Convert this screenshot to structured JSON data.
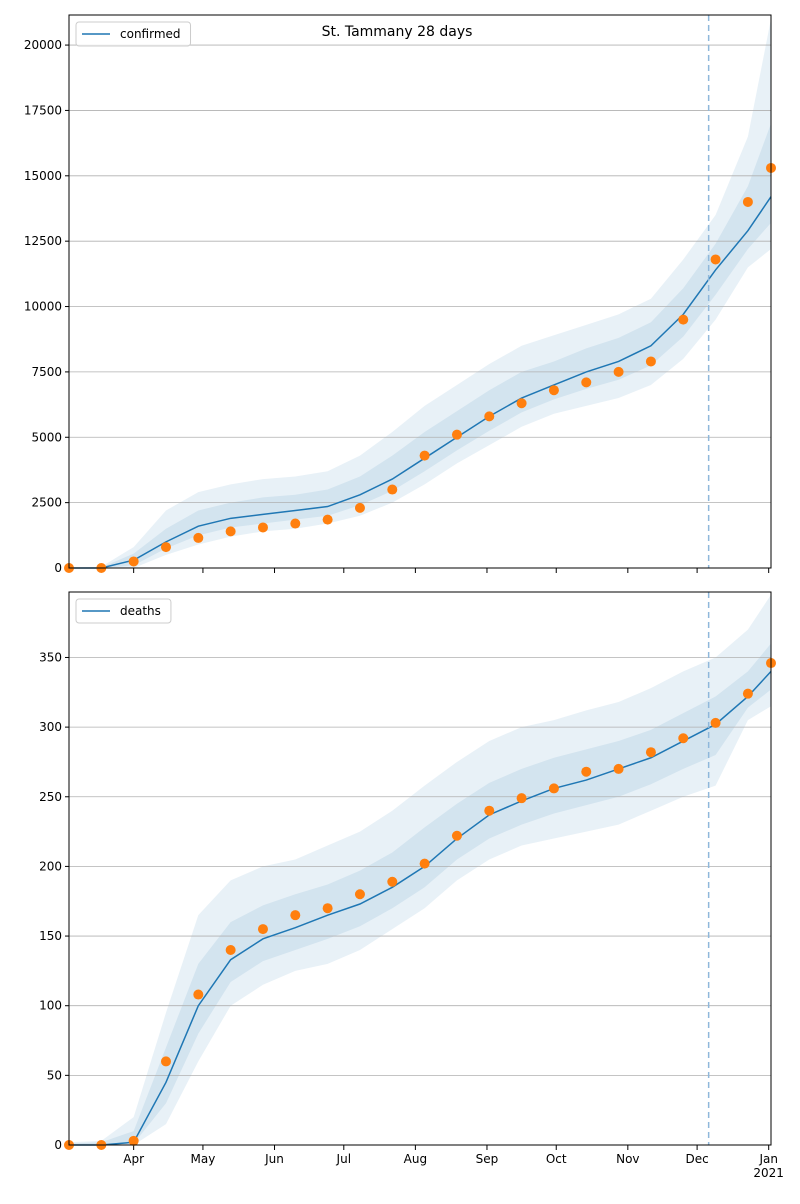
{
  "chart_data": [
    {
      "type": "line",
      "title": "St. Tammany 28 days",
      "legend": "upper left",
      "grid": true,
      "x": [
        64,
        78,
        92,
        106,
        120,
        134,
        148,
        162,
        176,
        190,
        204,
        218,
        232,
        246,
        260,
        274,
        288,
        302,
        316,
        330,
        344,
        358,
        368
      ],
      "xlim": [
        64,
        368
      ],
      "xticks": [
        {
          "value": 92,
          "label": "Apr"
        },
        {
          "value": 122,
          "label": "May"
        },
        {
          "value": 153,
          "label": "Jun"
        },
        {
          "value": 183,
          "label": "Jul"
        },
        {
          "value": 214,
          "label": "Aug"
        },
        {
          "value": 245,
          "label": "Sep"
        },
        {
          "value": 275,
          "label": "Oct"
        },
        {
          "value": 306,
          "label": "Nov"
        },
        {
          "value": 336,
          "label": "Dec"
        },
        {
          "value": 367,
          "label": "Jan\n2021"
        }
      ],
      "ylim": [
        0,
        21150
      ],
      "yticks": [
        0,
        2500,
        5000,
        7500,
        10000,
        12500,
        15000,
        17500,
        20000
      ],
      "vline_x": 341,
      "vline_color": "#8fb8db",
      "band_color": "#1f77b4",
      "bands": [
        {
          "lower": [
            0,
            0,
            0,
            500,
            900,
            1200,
            1400,
            1500,
            1700,
            2000,
            2500,
            3200,
            4000,
            4700,
            5400,
            5900,
            6200,
            6500,
            7000,
            8000,
            9500,
            11500,
            12200
          ],
          "upper": [
            0,
            50,
            800,
            2200,
            2900,
            3200,
            3400,
            3500,
            3700,
            4300,
            5200,
            6200,
            7000,
            7800,
            8500,
            8900,
            9300,
            9700,
            10300,
            11800,
            13500,
            16500,
            21000
          ]
        },
        {
          "lower": [
            0,
            0,
            100,
            750,
            1250,
            1550,
            1700,
            1850,
            2000,
            2400,
            2950,
            3700,
            4500,
            5250,
            5950,
            6450,
            6850,
            7200,
            7750,
            8850,
            10450,
            12200,
            13200
          ],
          "upper": [
            0,
            20,
            550,
            1500,
            2200,
            2500,
            2700,
            2800,
            3000,
            3500,
            4300,
            5200,
            6000,
            6800,
            7500,
            7900,
            8400,
            8800,
            9400,
            10700,
            12400,
            14600,
            17000
          ]
        }
      ],
      "series": [
        {
          "name": "confirmed",
          "color": "#1f77b4",
          "values": [
            0,
            0,
            300,
            1000,
            1600,
            1900,
            2050,
            2200,
            2350,
            2800,
            3400,
            4200,
            5000,
            5800,
            6500,
            7000,
            7500,
            7900,
            8500,
            9700,
            11400,
            12900,
            14200
          ]
        },
        {
          "color": "#ff7f0e",
          "values": [
            0,
            0,
            250,
            800,
            1150,
            1400,
            1550,
            1700,
            1850,
            2300,
            3000,
            4300,
            5100,
            5800,
            6300,
            6800,
            7100,
            7500,
            7900,
            9500,
            11800,
            14000,
            15300
          ]
        }
      ]
    },
    {
      "type": "line",
      "legend": "upper left",
      "grid": true,
      "x": [
        64,
        78,
        92,
        106,
        120,
        134,
        148,
        162,
        176,
        190,
        204,
        218,
        232,
        246,
        260,
        274,
        288,
        302,
        316,
        330,
        344,
        358,
        368
      ],
      "xlim": [
        64,
        368
      ],
      "xticks": [
        {
          "value": 92,
          "label": "Apr"
        },
        {
          "value": 122,
          "label": "May"
        },
        {
          "value": 153,
          "label": "Jun"
        },
        {
          "value": 183,
          "label": "Jul"
        },
        {
          "value": 214,
          "label": "Aug"
        },
        {
          "value": 245,
          "label": "Sep"
        },
        {
          "value": 275,
          "label": "Oct"
        },
        {
          "value": 306,
          "label": "Nov"
        },
        {
          "value": 336,
          "label": "Dec"
        },
        {
          "value": 367,
          "label": "Jan\n2021"
        }
      ],
      "ylim": [
        0,
        397
      ],
      "yticks": [
        0,
        50,
        100,
        150,
        200,
        250,
        300,
        350
      ],
      "vline_x": 341,
      "vline_color": "#8fb8db",
      "band_color": "#1f77b4",
      "bands": [
        {
          "lower": [
            0,
            0,
            0,
            15,
            60,
            100,
            115,
            125,
            130,
            140,
            155,
            170,
            190,
            205,
            215,
            220,
            225,
            230,
            240,
            250,
            258,
            305,
            315
          ],
          "upper": [
            2,
            3,
            20,
            95,
            165,
            190,
            200,
            205,
            215,
            225,
            240,
            258,
            275,
            290,
            300,
            305,
            312,
            318,
            328,
            340,
            350,
            370,
            395
          ]
        },
        {
          "lower": [
            0,
            0,
            1,
            30,
            80,
            117,
            132,
            140,
            148,
            157,
            170,
            185,
            205,
            220,
            230,
            238,
            244,
            250,
            259,
            270,
            280,
            314,
            327
          ],
          "upper": [
            1,
            2,
            10,
            70,
            130,
            160,
            172,
            180,
            187,
            197,
            210,
            228,
            245,
            260,
            270,
            278,
            284,
            290,
            298,
            310,
            322,
            340,
            360
          ]
        }
      ],
      "series": [
        {
          "name": "deaths",
          "color": "#1f77b4",
          "values": [
            0,
            0,
            2,
            45,
            100,
            133,
            148,
            156,
            165,
            173,
            185,
            200,
            220,
            237,
            247,
            256,
            262,
            270,
            278,
            290,
            302,
            322,
            340
          ]
        },
        {
          "color": "#ff7f0e",
          "values": [
            0,
            0,
            3,
            60,
            108,
            140,
            155,
            165,
            170,
            180,
            189,
            202,
            222,
            240,
            249,
            256,
            268,
            270,
            282,
            292,
            303,
            324,
            346
          ]
        }
      ]
    }
  ]
}
